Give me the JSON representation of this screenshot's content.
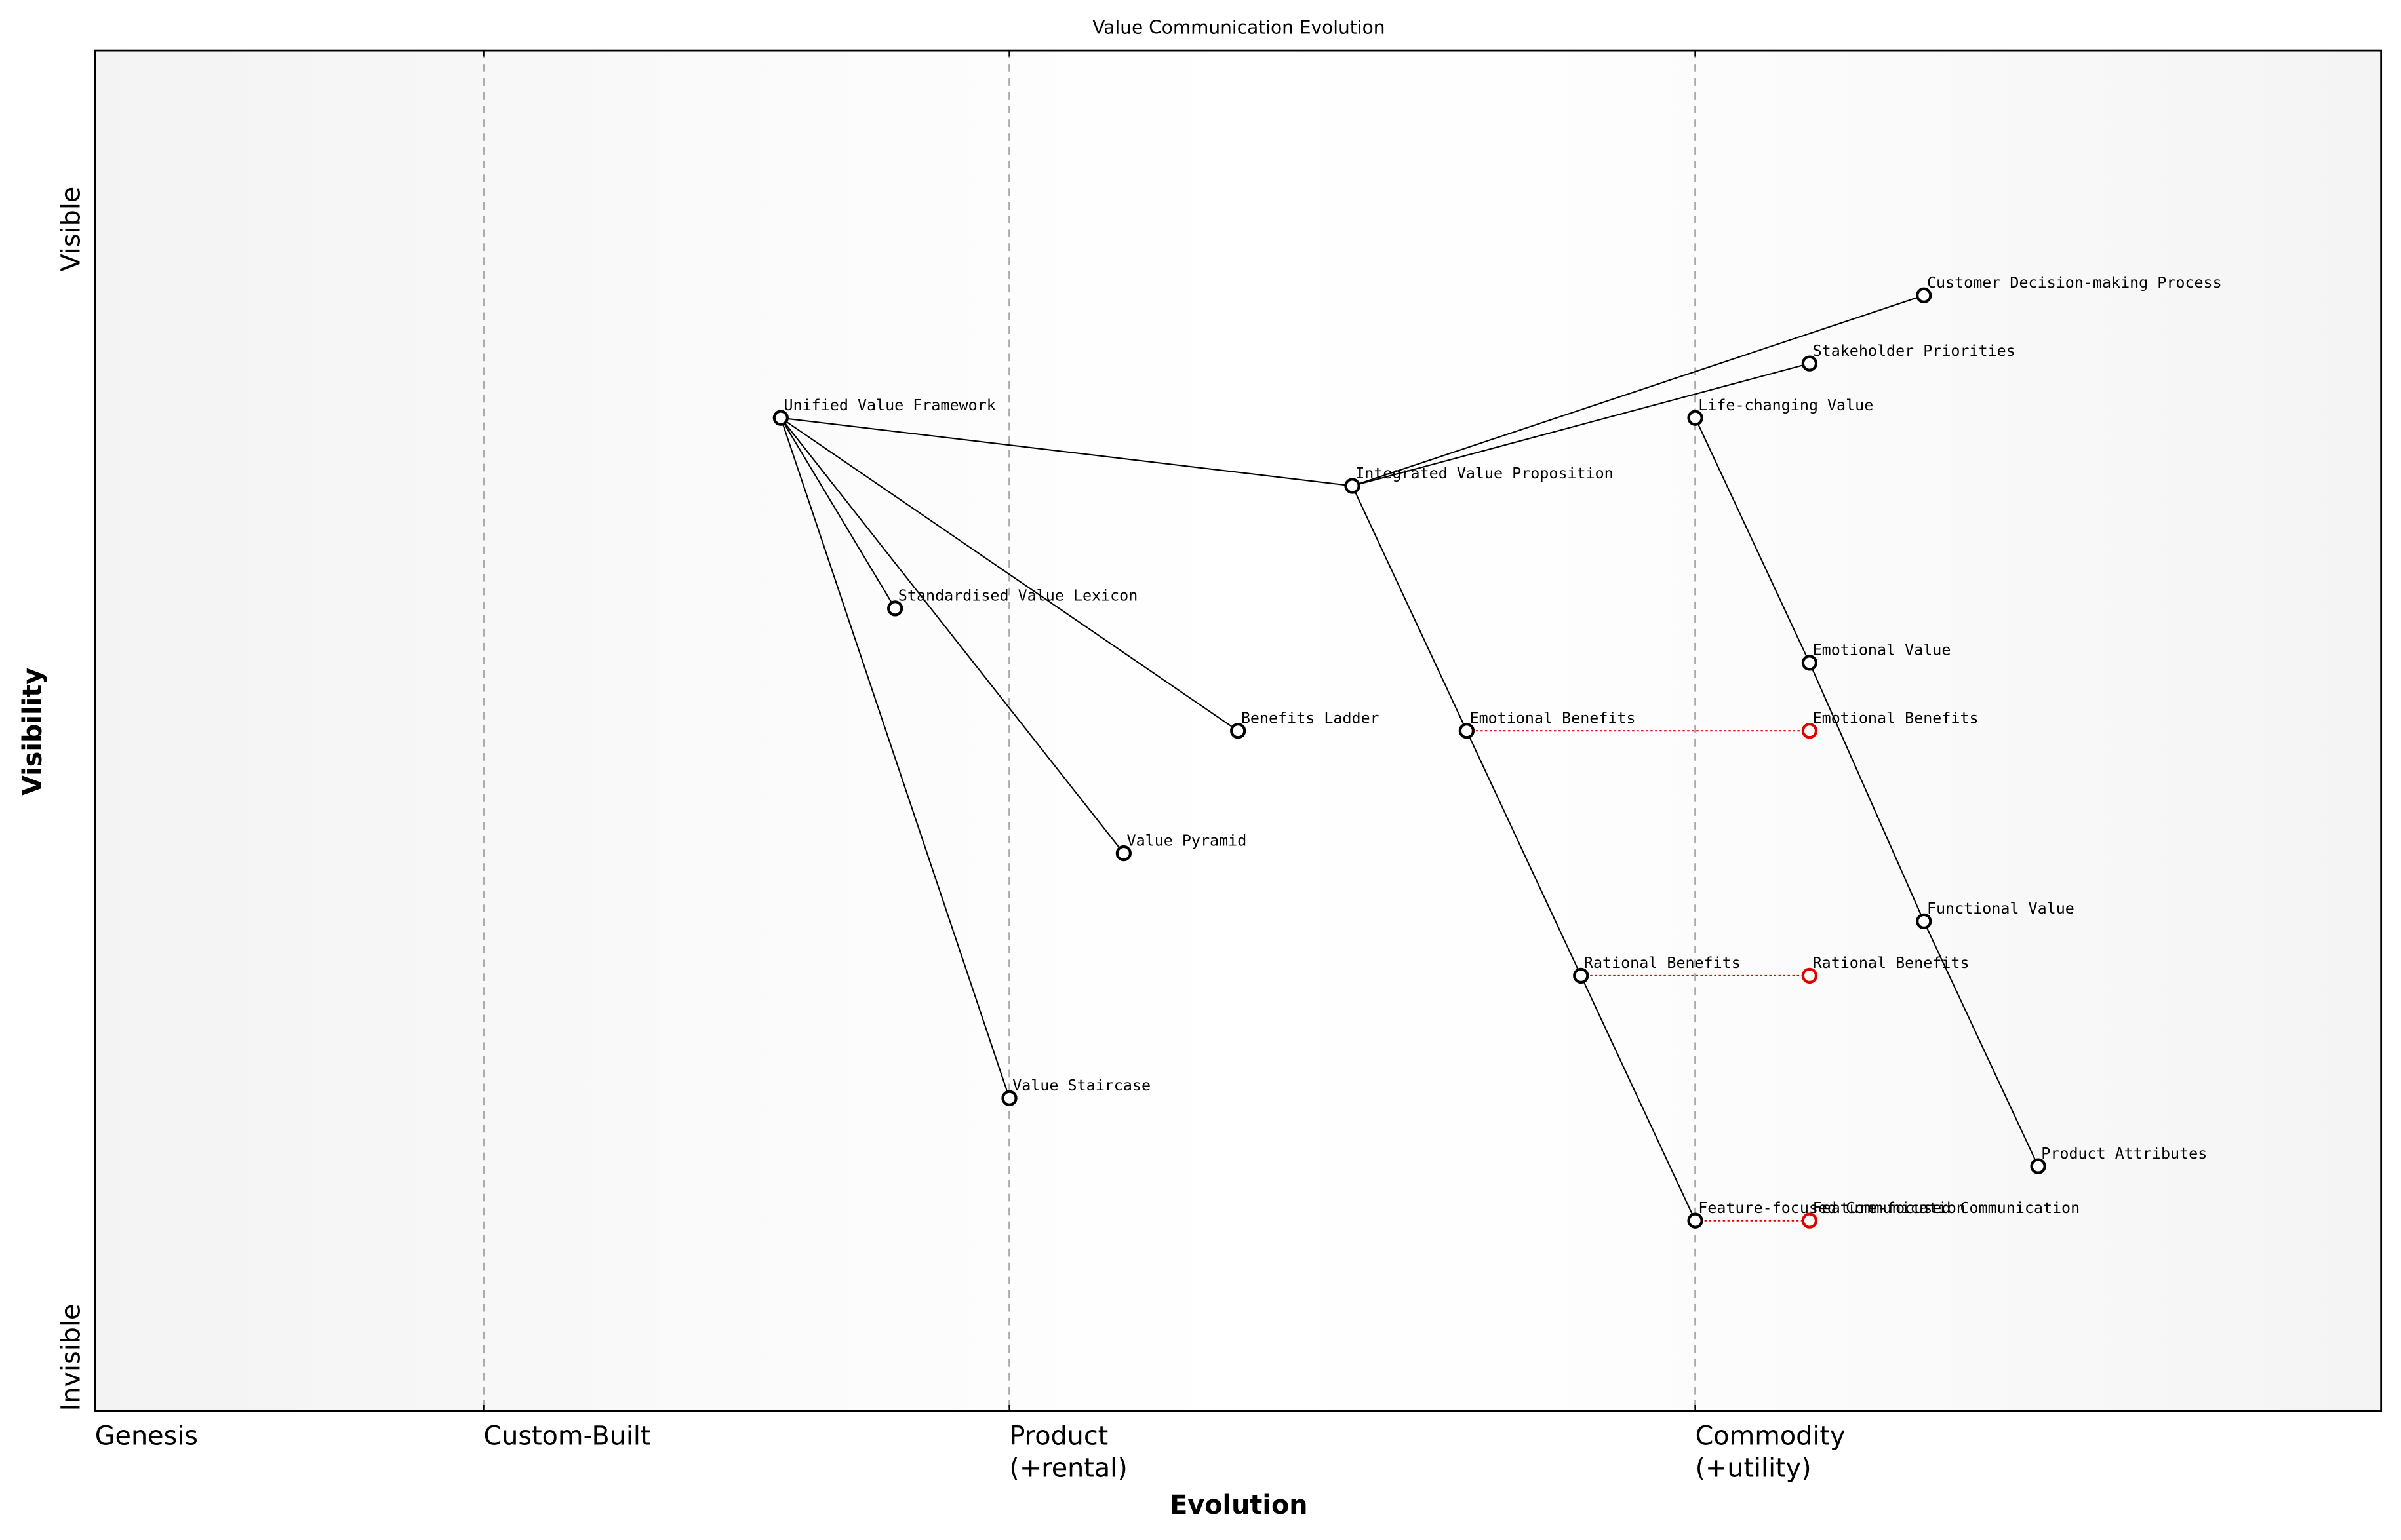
{
  "chart_data": {
    "type": "wardley",
    "title": "Value Communication Evolution",
    "xlabel": "Evolution",
    "ylabel": "Visibility",
    "xlim": [
      0,
      1
    ],
    "ylim": [
      0,
      1
    ],
    "xticks": [
      {
        "value": 0,
        "label": "Genesis"
      },
      {
        "value": 0.17,
        "label": "Custom-Built"
      },
      {
        "value": 0.4,
        "label": "Product\n(+rental)"
      },
      {
        "value": 0.7,
        "label": "Commodity\n(+utility)"
      }
    ],
    "yticks": [
      {
        "value": 0,
        "label": "Invisible"
      },
      {
        "value": 0.9,
        "label": "Visible"
      }
    ],
    "node_color": "#000000",
    "evolved_color": "#e00000",
    "nodes": [
      {
        "name": "Customer Decision-making Process",
        "x": 0.8,
        "y": 0.82
      },
      {
        "name": "Stakeholder Priorities",
        "x": 0.75,
        "y": 0.77
      },
      {
        "name": "Life-changing Value",
        "x": 0.7,
        "y": 0.73
      },
      {
        "name": "Integrated Value Proposition",
        "x": 0.55,
        "y": 0.68
      },
      {
        "name": "Unified Value Framework",
        "x": 0.3,
        "y": 0.73
      },
      {
        "name": "Standardised Value Lexicon",
        "x": 0.35,
        "y": 0.59
      },
      {
        "name": "Benefits Ladder",
        "x": 0.5,
        "y": 0.5
      },
      {
        "name": "Emotional Benefits",
        "x": 0.6,
        "y": 0.5
      },
      {
        "name": "Value Pyramid",
        "x": 0.45,
        "y": 0.41
      },
      {
        "name": "Emotional Value",
        "x": 0.75,
        "y": 0.55
      },
      {
        "name": "Functional Value",
        "x": 0.8,
        "y": 0.36
      },
      {
        "name": "Rational Benefits",
        "x": 0.65,
        "y": 0.32
      },
      {
        "name": "Value Staircase",
        "x": 0.4,
        "y": 0.23
      },
      {
        "name": "Product Attributes",
        "x": 0.85,
        "y": 0.18
      },
      {
        "name": "Feature-focused Communication",
        "x": 0.7,
        "y": 0.14
      }
    ],
    "evolved": [
      {
        "name": "Emotional Benefits",
        "x": 0.75,
        "y": 0.5
      },
      {
        "name": "Rational Benefits",
        "x": 0.75,
        "y": 0.32
      },
      {
        "name": "Feature-focused Communication",
        "x": 0.75,
        "y": 0.14
      }
    ],
    "links": [
      [
        "Customer Decision-making Process",
        "Integrated Value Proposition"
      ],
      [
        "Stakeholder Priorities",
        "Integrated Value Proposition"
      ],
      [
        "Integrated Value Proposition",
        "Unified Value Framework"
      ],
      [
        "Integrated Value Proposition",
        "Emotional Benefits"
      ],
      [
        "Emotional Benefits",
        "Rational Benefits"
      ],
      [
        "Rational Benefits",
        "Feature-focused Communication"
      ],
      [
        "Unified Value Framework",
        "Standardised Value Lexicon"
      ],
      [
        "Unified Value Framework",
        "Benefits Ladder"
      ],
      [
        "Unified Value Framework",
        "Value Pyramid"
      ],
      [
        "Unified Value Framework",
        "Value Staircase"
      ],
      [
        "Life-changing Value",
        "Emotional Value"
      ],
      [
        "Emotional Value",
        "Functional Value"
      ],
      [
        "Functional Value",
        "Product Attributes"
      ]
    ]
  }
}
